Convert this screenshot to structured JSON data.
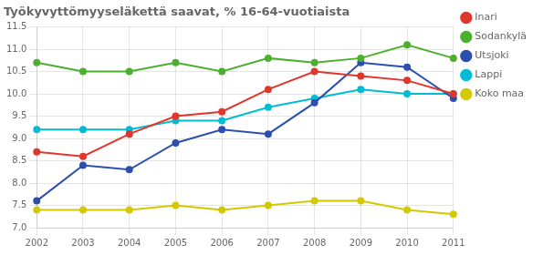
{
  "chart_data": {
    "type": "line",
    "title": "Työkyvyttömyyseläkettä saavat, % 16-64-vuotiaista",
    "categories": [
      "2002",
      "2003",
      "2004",
      "2005",
      "2006",
      "2007",
      "2008",
      "2009",
      "2010",
      "2011"
    ],
    "series": [
      {
        "name": "Inari",
        "color": "#e0362c",
        "values": [
          8.7,
          8.6,
          9.1,
          9.5,
          9.6,
          10.1,
          10.5,
          10.4,
          10.3,
          10.0
        ]
      },
      {
        "name": "Sodankylä",
        "color": "#4caf2e",
        "values": [
          10.7,
          10.5,
          10.5,
          10.7,
          10.5,
          10.8,
          10.7,
          10.8,
          11.1,
          10.8
        ]
      },
      {
        "name": "Utsjoki",
        "color": "#2c4faf",
        "values": [
          7.6,
          8.4,
          8.3,
          8.9,
          9.2,
          9.1,
          9.8,
          10.7,
          10.6,
          9.9
        ]
      },
      {
        "name": "Lappi",
        "color": "#00bcd4",
        "values": [
          9.2,
          9.2,
          9.2,
          9.4,
          9.4,
          9.7,
          9.9,
          10.1,
          10.0,
          10.0
        ]
      },
      {
        "name": "Koko maa",
        "color": "#d4c800",
        "values": [
          7.4,
          7.4,
          7.4,
          7.5,
          7.4,
          7.5,
          7.6,
          7.6,
          7.4,
          7.3
        ]
      }
    ],
    "ylim": [
      7.0,
      11.5
    ],
    "yticks": [
      {
        "value": 7,
        "label": "7.0"
      },
      7.5,
      {
        "value": 8,
        "label": "8.0"
      },
      8.5,
      {
        "value": 9,
        "label": "9.0"
      },
      9.5,
      {
        "value": 10,
        "label": "10.0"
      },
      10.5,
      {
        "value": 11,
        "label": "11.0"
      },
      11.5
    ],
    "grid": true,
    "legend": "right",
    "marker": "circle"
  }
}
